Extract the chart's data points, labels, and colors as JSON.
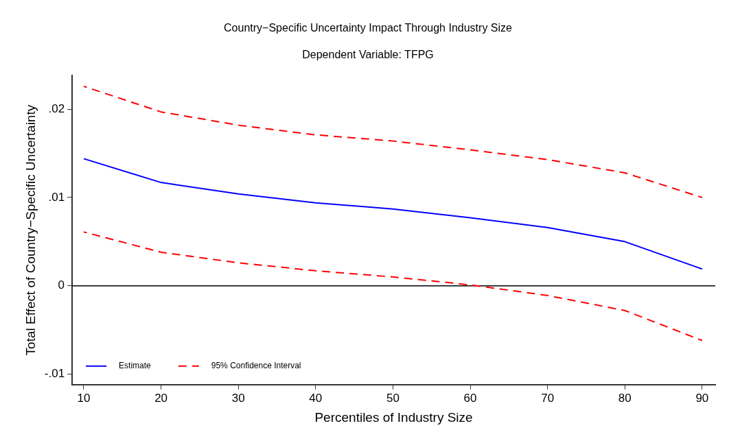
{
  "chart_data": {
    "type": "line",
    "title": "Country−Specific Uncertainty Impact Through Industry Size",
    "subtitle": "Dependent Variable: TFPG",
    "xlabel": "Percentiles of Industry Size",
    "ylabel": "Total Effect of Country−Specific Uncertainty",
    "x": [
      10,
      20,
      30,
      40,
      50,
      60,
      70,
      80,
      90
    ],
    "series": [
      {
        "name": "Estimate",
        "color": "#0000ff",
        "line_style": "solid",
        "values": [
          0.0144,
          0.0117,
          0.0104,
          0.0094,
          0.0087,
          0.0077,
          0.0066,
          0.005,
          0.0019
        ]
      },
      {
        "name": "95% Confidence Interval",
        "color": "#ff0000",
        "line_style": "dashed",
        "values": [
          0.0226,
          0.0197,
          0.0182,
          0.0171,
          0.0164,
          0.0154,
          0.0143,
          0.0128,
          0.01
        ]
      },
      {
        "color": "#ff0000",
        "line_style": "dashed",
        "values": [
          0.0061,
          0.0038,
          0.0026,
          0.0017,
          0.001,
          0.0001,
          -0.0011,
          -0.0028,
          -0.0062
        ]
      }
    ],
    "xlim": [
      8.5,
      91.7
    ],
    "xticks": [
      10,
      20,
      30,
      40,
      50,
      60,
      70,
      80,
      90
    ],
    "ylim": [
      -0.0112,
      0.0238
    ],
    "yticks": [
      {
        "value": -0.01,
        "label": "-.01"
      },
      {
        "value": 0,
        "label": "0"
      },
      {
        "value": 0.01,
        "label": ".01"
      },
      {
        "value": 0.02,
        "label": ".02"
      }
    ],
    "ref_lines": [
      {
        "axis": "y",
        "value": 0,
        "color": "#000000",
        "line_style": "solid"
      }
    ],
    "grid": false,
    "legend": "bottom left",
    "marker": "none"
  }
}
